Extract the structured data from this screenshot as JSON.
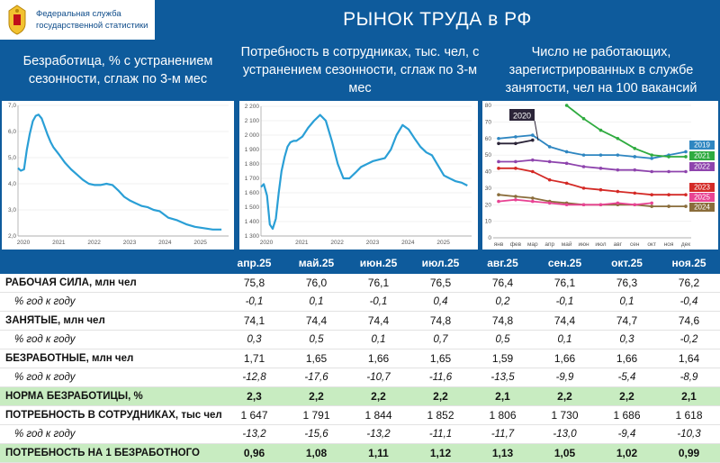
{
  "header": {
    "org_line1": "Федеральная служба",
    "org_line2": "государственной статистики",
    "title": "РЫНОК ТРУДА в РФ"
  },
  "charts": {
    "unemployment": {
      "title": "Безработица, % с устранением сезонности, сглаж по 3-м мес"
    },
    "demand": {
      "title": "Потребность в сотрудниках, тыс. чел, с устранением сезонности, сглаж по 3-м мес"
    },
    "registered": {
      "title": "Число не работающих, зарегистрированных в службе занятости, чел на 100 вакансий"
    }
  },
  "chart_data": [
    {
      "type": "line",
      "title": "Безработица, % с устранением сезонности, сглаж по 3-м мес",
      "ylim": [
        2.0,
        7.0
      ],
      "yticks": [
        "7,0",
        "6,0",
        "5,0",
        "4,0",
        "3,0",
        "2,0"
      ],
      "xticks": [
        "2020",
        "2021",
        "2022",
        "2023",
        "2024",
        "2025"
      ],
      "x_start": 2020.0,
      "x_end": 2025.95,
      "x": [
        2020.0,
        2020.08,
        2020.17,
        2020.25,
        2020.33,
        2020.42,
        2020.5,
        2020.58,
        2020.67,
        2020.75,
        2020.83,
        2020.92,
        2021.0,
        2021.17,
        2021.33,
        2021.5,
        2021.67,
        2021.83,
        2022.0,
        2022.17,
        2022.33,
        2022.5,
        2022.67,
        2022.83,
        2023.0,
        2023.17,
        2023.33,
        2023.5,
        2023.67,
        2023.83,
        2024.0,
        2024.25,
        2024.5,
        2024.75,
        2025.0,
        2025.25,
        2025.5,
        2025.75
      ],
      "values": [
        4.6,
        4.5,
        4.55,
        5.3,
        5.9,
        6.4,
        6.6,
        6.65,
        6.5,
        6.2,
        5.9,
        5.6,
        5.4,
        5.1,
        4.8,
        4.55,
        4.35,
        4.15,
        4.0,
        3.95,
        3.95,
        4.0,
        3.95,
        3.75,
        3.5,
        3.35,
        3.25,
        3.15,
        3.1,
        3.0,
        2.95,
        2.7,
        2.6,
        2.45,
        2.35,
        2.3,
        2.25,
        2.25
      ]
    },
    {
      "type": "line",
      "title": "Потребность в сотрудниках, тыс. чел, с устранением сезонности, сглаж по 3-м мес",
      "ylim": [
        1300,
        2200
      ],
      "yticks": [
        "2 200",
        "2 100",
        "2 000",
        "1 900",
        "1 800",
        "1 700",
        "1 600",
        "1 500",
        "1 400",
        "1 300"
      ],
      "xticks": [
        "2020",
        "2021",
        "2022",
        "2023",
        "2024",
        "2025"
      ],
      "x_start": 2020.0,
      "x_end": 2025.95,
      "x": [
        2020.0,
        2020.08,
        2020.17,
        2020.25,
        2020.33,
        2020.42,
        2020.5,
        2020.58,
        2020.67,
        2020.75,
        2020.83,
        2020.92,
        2021.0,
        2021.17,
        2021.33,
        2021.5,
        2021.67,
        2021.83,
        2022.0,
        2022.17,
        2022.33,
        2022.5,
        2022.67,
        2022.83,
        2023.0,
        2023.17,
        2023.33,
        2023.5,
        2023.67,
        2023.83,
        2024.0,
        2024.17,
        2024.33,
        2024.5,
        2024.67,
        2024.83,
        2025.0,
        2025.17,
        2025.33,
        2025.5,
        2025.67,
        2025.83
      ],
      "values": [
        1640,
        1660,
        1580,
        1380,
        1350,
        1420,
        1600,
        1750,
        1850,
        1920,
        1950,
        1960,
        1960,
        1990,
        2050,
        2100,
        2140,
        2100,
        1960,
        1800,
        1700,
        1700,
        1740,
        1780,
        1800,
        1820,
        1830,
        1840,
        1900,
        2000,
        2070,
        2040,
        1980,
        1920,
        1880,
        1860,
        1790,
        1720,
        1700,
        1680,
        1670,
        1650
      ]
    },
    {
      "type": "line",
      "title": "Число не работающих, зарегистрированных в службе занятости, чел на 100 вакансий",
      "ylim": [
        0,
        80
      ],
      "yticks": [
        "80",
        "70",
        "60",
        "50",
        "40",
        "30",
        "20",
        "10",
        "0"
      ],
      "categories": [
        "янв",
        "фев",
        "мар",
        "апр",
        "май",
        "июн",
        "июл",
        "авг",
        "сен",
        "окт",
        "ноя",
        "дек"
      ],
      "series": [
        {
          "name": "2019",
          "color": "#2e86c1",
          "values": [
            60,
            61,
            62,
            55,
            52,
            50,
            50,
            50,
            49,
            48,
            50,
            52
          ]
        },
        {
          "name": "2020",
          "color": "#2b2438",
          "values": [
            57,
            57,
            59,
            null,
            null,
            null,
            null,
            null,
            null,
            null,
            null,
            null
          ]
        },
        {
          "name": "2021",
          "color": "#2fab3f",
          "values": [
            null,
            null,
            null,
            null,
            80,
            72,
            65,
            60,
            54,
            50,
            49,
            49
          ]
        },
        {
          "name": "2022",
          "color": "#8e44ad",
          "values": [
            46,
            46,
            47,
            46,
            45,
            43,
            42,
            41,
            41,
            40,
            40,
            40
          ]
        },
        {
          "name": "2023",
          "color": "#d42a26",
          "values": [
            42,
            42,
            40,
            35,
            33,
            30,
            29,
            28,
            27,
            26,
            26,
            26
          ]
        },
        {
          "name": "2024",
          "color": "#8a6d3b",
          "values": [
            26,
            25,
            24,
            22,
            21,
            20,
            20,
            20,
            20,
            19,
            19,
            19
          ]
        },
        {
          "name": "2025",
          "color": "#e84393",
          "values": [
            22,
            23,
            22,
            21,
            20,
            20,
            20,
            21,
            20,
            21,
            null,
            null
          ]
        }
      ]
    }
  ],
  "table": {
    "columns": [
      "апр.25",
      "май.25",
      "июн.25",
      "июл.25",
      "авг.25",
      "сен.25",
      "окт.25",
      "ноя.25"
    ],
    "rows": [
      {
        "label": "РАБОЧАЯ СИЛА, млн чел",
        "values": [
          "75,8",
          "76,0",
          "76,1",
          "76,5",
          "76,4",
          "76,1",
          "76,3",
          "76,2"
        ]
      },
      {
        "label": "% год к году",
        "values": [
          "-0,1",
          "0,1",
          "-0,1",
          "0,4",
          "0,2",
          "-0,1",
          "0,1",
          "-0,4"
        ]
      },
      {
        "label": "ЗАНЯТЫЕ, млн чел",
        "values": [
          "74,1",
          "74,4",
          "74,4",
          "74,8",
          "74,8",
          "74,4",
          "74,7",
          "74,6"
        ]
      },
      {
        "label": "% год к году",
        "values": [
          "0,3",
          "0,5",
          "0,1",
          "0,7",
          "0,5",
          "0,1",
          "0,3",
          "-0,2"
        ]
      },
      {
        "label": "БЕЗРАБОТНЫЕ, млн чел",
        "values": [
          "1,71",
          "1,65",
          "1,66",
          "1,65",
          "1,59",
          "1,66",
          "1,66",
          "1,64"
        ]
      },
      {
        "label": "% год к году",
        "values": [
          "-12,8",
          "-17,6",
          "-10,7",
          "-11,6",
          "-13,5",
          "-9,9",
          "-5,4",
          "-8,9"
        ]
      },
      {
        "label": "НОРМА БЕЗРАБОТИЦЫ, %",
        "values": [
          "2,3",
          "2,2",
          "2,2",
          "2,2",
          "2,1",
          "2,2",
          "2,2",
          "2,1"
        ]
      },
      {
        "label": "ПОТРЕБНОСТЬ В СОТРУДНИКАХ, тыс чел",
        "values": [
          "1 647",
          "1 791",
          "1 844",
          "1 852",
          "1 806",
          "1 730",
          "1 686",
          "1 618"
        ]
      },
      {
        "label": "% год к году",
        "values": [
          "-13,2",
          "-15,6",
          "-13,2",
          "-11,1",
          "-11,7",
          "-13,0",
          "-9,4",
          "-10,3"
        ]
      },
      {
        "label": "ПОТРЕБНОСТЬ НА 1 БЕЗРАБОТНОГО",
        "values": [
          "0,96",
          "1,08",
          "1,11",
          "1,12",
          "1,13",
          "1,05",
          "1,02",
          "0,99"
        ]
      }
    ]
  }
}
